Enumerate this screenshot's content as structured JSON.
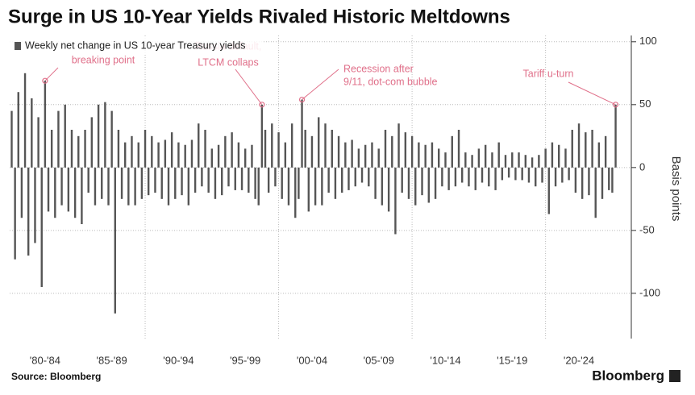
{
  "chart_data": {
    "type": "bar",
    "title": "Surge in US 10-Year Yields Rivaled Historic Meltdowns",
    "legend": "Weekly net change in US 10-year Treasury yields",
    "y_axis_label": "Basis points",
    "source": "Source: Bloomberg",
    "brand": "Bloomberg",
    "color": "#555555",
    "xlim": [
      1980,
      2025.7
    ],
    "xticks": [
      {
        "value": 1982.5,
        "label": "'80-'84"
      },
      {
        "value": 1987.5,
        "label": "'85-'89"
      },
      {
        "value": 1992.5,
        "label": "'90-'94"
      },
      {
        "value": 1997.5,
        "label": "'95-'99"
      },
      {
        "value": 2002.5,
        "label": "'00-'04"
      },
      {
        "value": 2007.5,
        "label": "'05-'09"
      },
      {
        "value": 2012.5,
        "label": "'10-'14"
      },
      {
        "value": 2017.5,
        "label": "'15-'19"
      },
      {
        "value": 2022.5,
        "label": "'20-'24"
      }
    ],
    "xgrid": [
      1990,
      2000,
      2010,
      2020
    ],
    "ylim": [
      -136,
      105
    ],
    "yticks": [
      -100,
      -50,
      0,
      50,
      100
    ],
    "grid": true,
    "annotations": [
      {
        "text": [
          "breaking point"
        ],
        "x": 1982.5,
        "y": 69
      },
      {
        "text": [
          "Russia default,",
          "LTCM collaps"
        ],
        "x": 1998.75,
        "y": 50
      },
      {
        "text": [
          "Recession after",
          "9/11, dot-com bubble"
        ],
        "x": 2001.75,
        "y": 54
      },
      {
        "text": [
          "Tariff u-turn"
        ],
        "x": 2025.25,
        "y": 50
      }
    ],
    "x": [
      1980,
      1980.25,
      1980.5,
      1980.75,
      1981,
      1981.25,
      1981.5,
      1981.75,
      1982,
      1982.25,
      1982.5,
      1982.75,
      1983,
      1983.25,
      1983.5,
      1983.75,
      1984,
      1984.25,
      1984.5,
      1984.75,
      1985,
      1985.25,
      1985.5,
      1985.75,
      1986,
      1986.25,
      1986.5,
      1986.75,
      1987,
      1987.25,
      1987.5,
      1987.75,
      1988,
      1988.25,
      1988.5,
      1988.75,
      1989,
      1989.25,
      1989.5,
      1989.75,
      1990,
      1990.25,
      1990.5,
      1990.75,
      1991,
      1991.25,
      1991.5,
      1991.75,
      1992,
      1992.25,
      1992.5,
      1992.75,
      1993,
      1993.25,
      1993.5,
      1993.75,
      1994,
      1994.25,
      1994.5,
      1994.75,
      1995,
      1995.25,
      1995.5,
      1995.75,
      1996,
      1996.25,
      1996.5,
      1996.75,
      1997,
      1997.25,
      1997.5,
      1997.75,
      1998,
      1998.25,
      1998.5,
      1998.75,
      1999,
      1999.25,
      1999.5,
      1999.75,
      2000,
      2000.25,
      2000.5,
      2000.75,
      2001,
      2001.25,
      2001.5,
      2001.75,
      2002,
      2002.25,
      2002.5,
      2002.75,
      2003,
      2003.25,
      2003.5,
      2003.75,
      2004,
      2004.25,
      2004.5,
      2004.75,
      2005,
      2005.25,
      2005.5,
      2005.75,
      2006,
      2006.25,
      2006.5,
      2006.75,
      2007,
      2007.25,
      2007.5,
      2007.75,
      2008,
      2008.25,
      2008.5,
      2008.75,
      2009,
      2009.25,
      2009.5,
      2009.75,
      2010,
      2010.25,
      2010.5,
      2010.75,
      2011,
      2011.25,
      2011.5,
      2011.75,
      2012,
      2012.25,
      2012.5,
      2012.75,
      2013,
      2013.25,
      2013.5,
      2013.75,
      2014,
      2014.25,
      2014.5,
      2014.75,
      2015,
      2015.25,
      2015.5,
      2015.75,
      2016,
      2016.25,
      2016.5,
      2016.75,
      2017,
      2017.25,
      2017.5,
      2017.75,
      2018,
      2018.25,
      2018.5,
      2018.75,
      2019,
      2019.25,
      2019.5,
      2019.75,
      2020,
      2020.25,
      2020.5,
      2020.75,
      2021,
      2021.25,
      2021.5,
      2021.75,
      2022,
      2022.25,
      2022.5,
      2022.75,
      2023,
      2023.25,
      2023.5,
      2023.75,
      2024,
      2024.25,
      2024.5,
      2024.75,
      2025,
      2025.25
    ],
    "values": [
      45,
      -73,
      60,
      -40,
      75,
      -70,
      55,
      -60,
      40,
      -95,
      69,
      -35,
      30,
      -40,
      45,
      -30,
      50,
      -35,
      30,
      -40,
      25,
      -45,
      30,
      -20,
      40,
      -30,
      50,
      -25,
      52,
      -30,
      45,
      -116,
      30,
      -25,
      20,
      -30,
      25,
      -30,
      20,
      -25,
      30,
      -22,
      25,
      -20,
      20,
      -25,
      22,
      -30,
      28,
      -25,
      20,
      -22,
      18,
      -30,
      22,
      -20,
      35,
      -15,
      30,
      -20,
      15,
      -25,
      18,
      -22,
      25,
      -15,
      28,
      -18,
      20,
      -18,
      15,
      -20,
      18,
      -25,
      -30,
      50,
      30,
      -20,
      35,
      -15,
      28,
      -25,
      20,
      -30,
      35,
      -40,
      -25,
      54,
      30,
      -35,
      25,
      -30,
      40,
      -30,
      35,
      -20,
      30,
      -25,
      25,
      -20,
      20,
      -18,
      22,
      -15,
      15,
      -12,
      18,
      -15,
      20,
      -25,
      15,
      -30,
      30,
      -35,
      25,
      -53,
      35,
      -20,
      28,
      -25,
      25,
      -30,
      20,
      -22,
      18,
      -28,
      20,
      -25,
      15,
      -15,
      12,
      -18,
      25,
      -15,
      30,
      -12,
      12,
      -15,
      10,
      -18,
      15,
      -12,
      18,
      -15,
      12,
      -18,
      20,
      -10,
      10,
      -8,
      12,
      -10,
      12,
      -10,
      10,
      -12,
      8,
      -15,
      10,
      -12,
      15,
      -37,
      20,
      -15,
      18,
      -12,
      15,
      -10,
      30,
      -20,
      35,
      -25,
      28,
      -22,
      30,
      -40,
      20,
      -25,
      25,
      -18,
      -20,
      50
    ]
  }
}
